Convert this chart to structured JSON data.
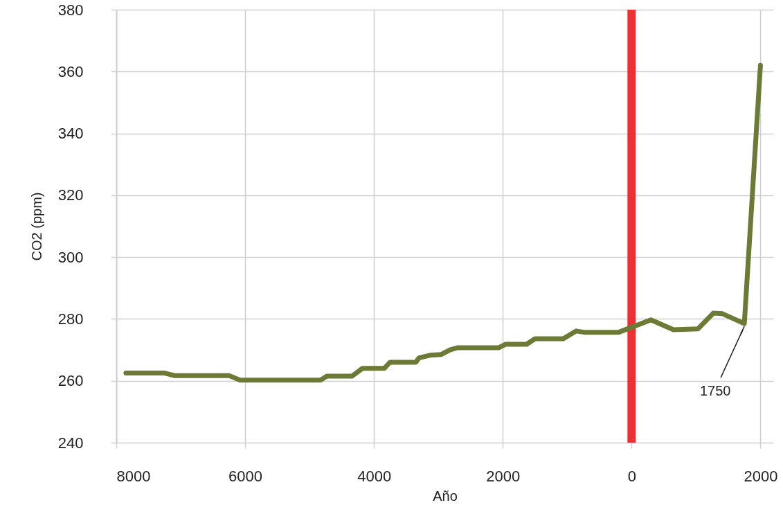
{
  "chart_data": {
    "type": "line",
    "xlabel": "Año",
    "ylabel": "CO2 (ppm)",
    "x": [
      -7850,
      -7250,
      -7100,
      -6250,
      -6080,
      -4830,
      -4730,
      -4340,
      -4180,
      -3840,
      -3750,
      -3350,
      -3300,
      -3120,
      -2960,
      -2820,
      -2700,
      -2060,
      -1960,
      -1630,
      -1500,
      -1060,
      -860,
      -740,
      -200,
      300,
      650,
      1030,
      1270,
      1410,
      1750,
      2000
    ],
    "series": [
      {
        "color": "#6b7a34",
        "values": [
          262.5,
          262.5,
          261.7,
          261.7,
          260.2,
          260.2,
          261.5,
          261.5,
          264.0,
          264.0,
          266.0,
          266.0,
          267.4,
          268.3,
          268.5,
          270.0,
          270.7,
          270.7,
          271.8,
          271.8,
          273.6,
          273.6,
          276.1,
          275.7,
          275.7,
          279.7,
          276.5,
          276.8,
          281.9,
          281.7,
          278.5,
          362
        ]
      }
    ],
    "xlim": [
      -8000,
      2200
    ],
    "ylim": [
      240,
      380
    ],
    "xticks": [
      {
        "value": -8000,
        "label": "8000"
      },
      {
        "value": -6000,
        "label": "6000"
      },
      {
        "value": -4000,
        "label": "4000"
      },
      {
        "value": -2000,
        "label": "2000"
      },
      0,
      2000
    ],
    "yticks": [
      240,
      260,
      280,
      300,
      320,
      340,
      360,
      380
    ],
    "ref_lines": [
      {
        "axis": "x",
        "value": 0,
        "color": "#ee3035"
      }
    ],
    "annotations": [
      {
        "text": "1750",
        "x": 1750,
        "y": 278.5
      }
    ],
    "grid": true,
    "line_style": "solid"
  }
}
